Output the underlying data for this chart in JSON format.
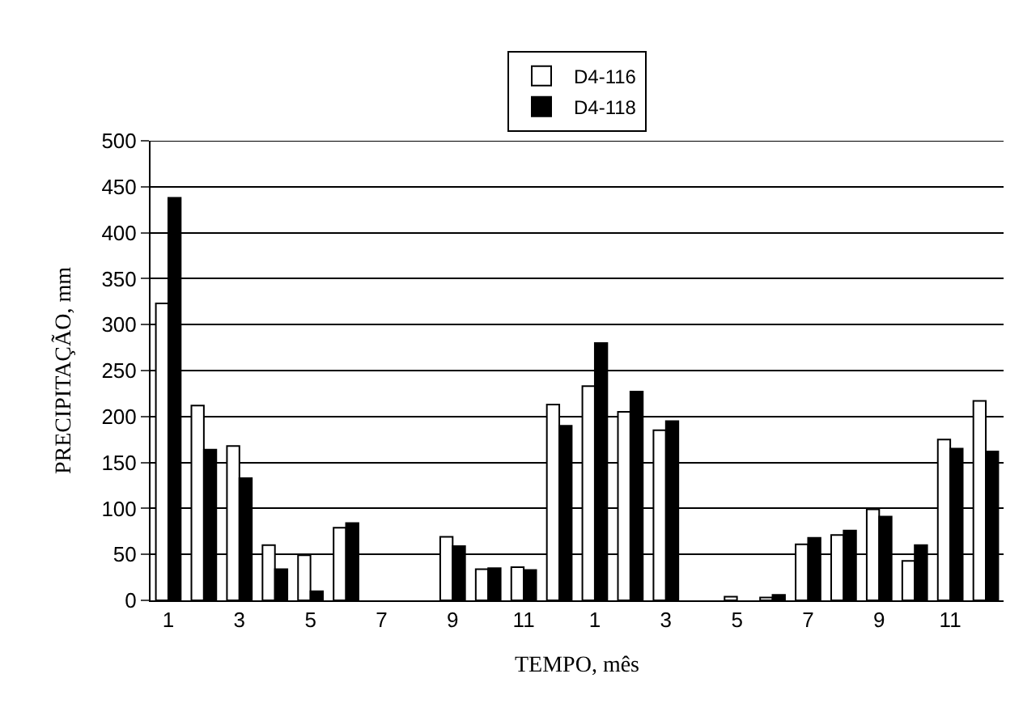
{
  "chart_data": {
    "type": "bar",
    "xlabel": "TEMPO, mês",
    "ylabel": "PRECIPITAÇÃO, mm",
    "categories": [
      "1",
      null,
      "3",
      null,
      "5",
      null,
      "7",
      null,
      "9",
      null,
      "11",
      null,
      "1",
      null,
      "3",
      null,
      "5",
      null,
      "7",
      null,
      "9",
      null,
      "11",
      null
    ],
    "series": [
      {
        "name": "D4-116",
        "color": "#ffffff",
        "values": [
          323,
          212,
          168,
          60,
          49,
          79,
          null,
          null,
          69,
          34,
          36,
          213,
          233,
          205,
          185,
          null,
          4,
          3,
          61,
          71,
          99,
          43,
          175,
          217
        ]
      },
      {
        "name": "D4-118",
        "color": "#000000",
        "values": [
          438,
          164,
          133,
          34,
          10,
          84,
          null,
          null,
          59,
          35,
          33,
          190,
          280,
          227,
          195,
          null,
          null,
          6,
          68,
          76,
          91,
          60,
          165,
          162
        ]
      }
    ],
    "ylim": [
      0,
      500
    ],
    "yticks": [
      0,
      50,
      100,
      150,
      200,
      250,
      300,
      350,
      400,
      450,
      500
    ],
    "grid": "y",
    "legend": "top"
  }
}
